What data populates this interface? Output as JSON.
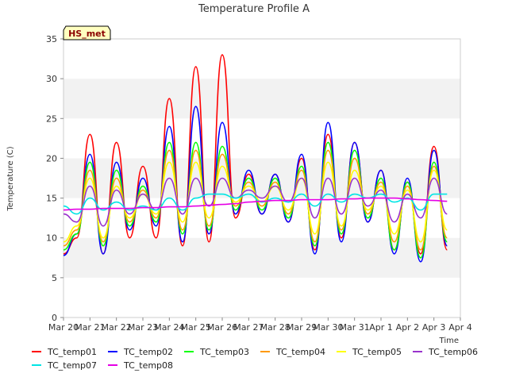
{
  "chart_data": {
    "type": "line",
    "title": "Temperature Profile A",
    "xlabel": "Time",
    "ylabel": "Temperature (C)",
    "ylim": [
      0,
      35
    ],
    "yticks": [
      0,
      5,
      10,
      15,
      20,
      25,
      30,
      35
    ],
    "xlim_days": [
      0,
      15
    ],
    "xticks": [
      "Mar 20",
      "Mar 21",
      "Mar 22",
      "Mar 23",
      "Mar 24",
      "Mar 25",
      "Mar 26",
      "Mar 27",
      "Mar 28",
      "Mar 29",
      "Mar 30",
      "Mar 31",
      "Apr 1",
      "Apr 2",
      "Apr 3",
      "Apr 4"
    ],
    "badge": "HS_met",
    "grid": "horizontal bands",
    "legend_position": "bottom",
    "x": [
      "Mar 20",
      "Mar 20 12h",
      "Mar 21",
      "Mar 21 12h",
      "Mar 22",
      "Mar 22 12h",
      "Mar 23",
      "Mar 23 12h",
      "Mar 24",
      "Mar 24 12h",
      "Mar 25",
      "Mar 25 12h",
      "Mar 26",
      "Mar 26 12h",
      "Mar 27",
      "Mar 27 12h",
      "Mar 28",
      "Mar 28 12h",
      "Mar 29",
      "Mar 29 12h",
      "Mar 30",
      "Mar 30 12h",
      "Mar 31",
      "Mar 31 12h",
      "Apr 1",
      "Apr 1 12h",
      "Apr 2",
      "Apr 2 12h",
      "Apr 3",
      "Apr 3 12h"
    ],
    "series": [
      {
        "name": "TC_temp01",
        "color": "#ff0000",
        "values": [
          8.0,
          10.0,
          23.0,
          8.0,
          22.0,
          10.0,
          19.0,
          10.0,
          27.5,
          9.0,
          31.5,
          9.5,
          33.0,
          12.5,
          18.0,
          13.0,
          18.0,
          12.0,
          20.0,
          8.5,
          23.0,
          10.0,
          22.0,
          12.0,
          18.5,
          8.5,
          17.0,
          8.0,
          21.5,
          8.5
        ]
      },
      {
        "name": "TC_temp02",
        "color": "#0000ff",
        "values": [
          7.8,
          10.5,
          20.5,
          8.0,
          19.5,
          11.0,
          17.5,
          11.5,
          24.0,
          9.5,
          26.5,
          10.5,
          24.5,
          13.0,
          18.5,
          13.0,
          18.0,
          12.0,
          20.5,
          8.0,
          24.5,
          9.5,
          22.0,
          12.0,
          18.5,
          8.0,
          17.5,
          7.0,
          21.0,
          9.0
        ]
      },
      {
        "name": "TC_temp03",
        "color": "#00ff00",
        "values": [
          8.5,
          10.5,
          19.5,
          9.0,
          18.5,
          11.5,
          16.5,
          12.0,
          22.0,
          10.5,
          22.0,
          11.0,
          21.5,
          13.5,
          17.5,
          13.5,
          17.5,
          12.5,
          19.0,
          9.0,
          22.0,
          10.5,
          21.0,
          12.5,
          17.5,
          8.5,
          17.0,
          7.5,
          19.5,
          9.5
        ]
      },
      {
        "name": "TC_temp04",
        "color": "#ff9900",
        "values": [
          9.0,
          11.0,
          18.5,
          9.5,
          17.5,
          12.0,
          16.0,
          12.5,
          21.0,
          11.0,
          21.0,
          11.5,
          20.5,
          14.0,
          17.0,
          14.0,
          17.0,
          13.0,
          18.5,
          9.5,
          21.0,
          11.0,
          20.0,
          13.0,
          17.0,
          9.5,
          16.5,
          8.5,
          19.0,
          10.0
        ]
      },
      {
        "name": "TC_temp05",
        "color": "#ffff00",
        "values": [
          9.5,
          11.5,
          17.5,
          10.0,
          16.5,
          12.5,
          15.5,
          13.0,
          19.5,
          12.0,
          19.5,
          12.5,
          19.0,
          14.5,
          16.5,
          14.5,
          16.5,
          13.5,
          17.5,
          10.5,
          19.5,
          11.5,
          18.5,
          13.5,
          16.5,
          10.5,
          16.0,
          9.5,
          18.5,
          11.0
        ]
      },
      {
        "name": "TC_temp06",
        "color": "#9933cc",
        "values": [
          13.0,
          12.0,
          16.5,
          11.5,
          16.0,
          13.0,
          15.5,
          13.5,
          17.5,
          13.0,
          17.5,
          14.0,
          17.5,
          15.0,
          16.0,
          15.0,
          16.5,
          14.5,
          17.5,
          12.5,
          17.5,
          13.0,
          17.5,
          14.0,
          16.0,
          12.0,
          15.5,
          12.5,
          17.5,
          13.0
        ]
      },
      {
        "name": "TC_temp07",
        "color": "#00e5e5",
        "values": [
          14.0,
          13.0,
          15.0,
          13.5,
          14.5,
          13.5,
          14.0,
          13.5,
          15.0,
          13.5,
          15.0,
          15.5,
          15.5,
          15.0,
          15.5,
          14.5,
          15.0,
          14.5,
          15.5,
          14.0,
          15.5,
          14.5,
          15.5,
          15.0,
          15.5,
          14.5,
          15.0,
          13.5,
          15.5,
          15.5
        ]
      },
      {
        "name": "TC_temp08",
        "color": "#e500e5",
        "values": [
          13.5,
          13.6,
          13.6,
          13.7,
          13.7,
          13.7,
          13.8,
          13.8,
          13.9,
          13.9,
          14.0,
          14.1,
          14.2,
          14.3,
          14.5,
          14.6,
          14.7,
          14.7,
          14.8,
          14.8,
          14.8,
          14.9,
          14.9,
          15.0,
          15.0,
          15.0,
          14.9,
          14.8,
          14.7,
          14.6
        ]
      }
    ]
  }
}
